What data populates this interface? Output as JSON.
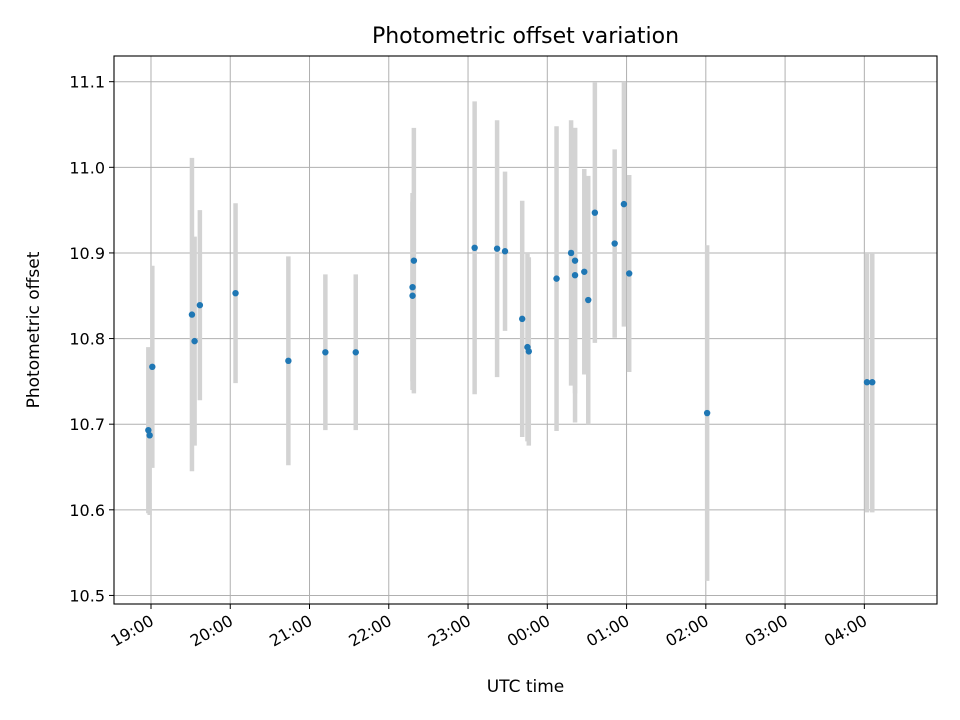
{
  "chart_data": {
    "type": "scatter",
    "title": "Photometric offset variation",
    "xlabel": "UTC time",
    "ylabel": "Photometric offset",
    "x_axis": {
      "kind": "time",
      "range": [
        "18:32",
        "04:55"
      ],
      "ticks": [
        "19:00",
        "20:00",
        "21:00",
        "22:00",
        "23:00",
        "00:00",
        "01:00",
        "02:00",
        "03:00",
        "04:00"
      ]
    },
    "y_axis": {
      "range": [
        10.49,
        11.13
      ],
      "ticks": [
        "10.5",
        "10.6",
        "10.7",
        "10.8",
        "10.9",
        "11.0",
        "11.1"
      ]
    },
    "grid": true,
    "colors": {
      "points": "#1f77b4",
      "errorbars": "#d3d3d3"
    },
    "series": [
      {
        "points": [
          {
            "x": "18:58",
            "y": 10.693,
            "yerr": 0.097
          },
          {
            "x": "18:59",
            "y": 10.687,
            "yerr": 0.093
          },
          {
            "x": "19:01",
            "y": 10.767,
            "yerr": 0.118
          },
          {
            "x": "19:31",
            "y": 10.828,
            "yerr": 0.183
          },
          {
            "x": "19:33",
            "y": 10.797,
            "yerr": 0.122
          },
          {
            "x": "19:37",
            "y": 10.839,
            "yerr": 0.111
          },
          {
            "x": "20:04",
            "y": 10.853,
            "yerr": 0.105
          },
          {
            "x": "20:44",
            "y": 10.774,
            "yerr": 0.122
          },
          {
            "x": "21:12",
            "y": 10.784,
            "yerr": 0.091
          },
          {
            "x": "21:35",
            "y": 10.784,
            "yerr": 0.091
          },
          {
            "x": "22:18",
            "y": 10.86,
            "yerr": 0.11
          },
          {
            "x": "22:18",
            "y": 10.85,
            "yerr": 0.11
          },
          {
            "x": "22:19",
            "y": 10.891,
            "yerr": 0.155
          },
          {
            "x": "23:05",
            "y": 10.906,
            "yerr": 0.171
          },
          {
            "x": "23:22",
            "y": 10.905,
            "yerr": 0.15
          },
          {
            "x": "23:28",
            "y": 10.902,
            "yerr": 0.093
          },
          {
            "x": "23:41",
            "y": 10.823,
            "yerr": 0.138
          },
          {
            "x": "23:45",
            "y": 10.79,
            "yerr": 0.11
          },
          {
            "x": "23:46",
            "y": 10.785,
            "yerr": 0.11
          },
          {
            "x": "00:07",
            "y": 10.87,
            "yerr": 0.178
          },
          {
            "x": "00:18",
            "y": 10.9,
            "yerr": 0.155
          },
          {
            "x": "00:21",
            "y": 10.874,
            "yerr": 0.172
          },
          {
            "x": "00:21",
            "y": 10.891,
            "yerr": 0.155
          },
          {
            "x": "00:28",
            "y": 10.878,
            "yerr": 0.12
          },
          {
            "x": "00:31",
            "y": 10.845,
            "yerr": 0.145
          },
          {
            "x": "00:36",
            "y": 10.947,
            "yerr": 0.152
          },
          {
            "x": "00:51",
            "y": 10.911,
            "yerr": 0.11
          },
          {
            "x": "00:58",
            "y": 10.957,
            "yerr": 0.143
          },
          {
            "x": "01:02",
            "y": 10.876,
            "yerr": 0.115
          },
          {
            "x": "02:01",
            "y": 10.713,
            "yerr": 0.196
          },
          {
            "x": "04:02",
            "y": 10.749,
            "yerr": 0.152
          },
          {
            "x": "04:06",
            "y": 10.749,
            "yerr": 0.152
          }
        ]
      }
    ]
  }
}
